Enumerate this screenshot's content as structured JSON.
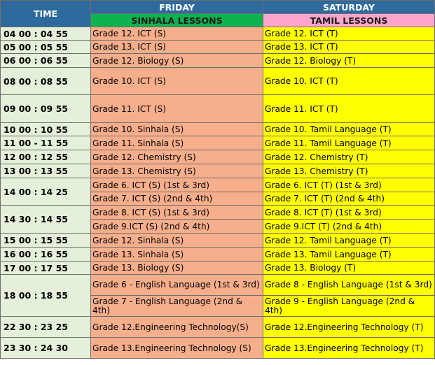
{
  "header": {
    "time": "TIME",
    "friday": "FRIDAY",
    "saturday": "SATURDAY",
    "sinhala": "SINHALA LESSONS",
    "tamil": "TAMIL LESSONS"
  },
  "rows": [
    {
      "time": "04 00 : 04 55",
      "fri": [
        "Grade 12. ICT (S)"
      ],
      "sat": [
        "Grade 12. ICT (T)"
      ]
    },
    {
      "time": "05 00 : 05 55",
      "fri": [
        "Grade 13. ICT (S)"
      ],
      "sat": [
        "Grade 13. ICT (T)"
      ]
    },
    {
      "time": "06 00 :  06 55",
      "fri": [
        "Grade 12. Biology (S)"
      ],
      "sat": [
        "Grade 12. Biology  (T)"
      ]
    },
    {
      "time": "08 00 : 08 55",
      "fri": [
        "Grade 10. ICT (S)"
      ],
      "sat": [
        "Grade 10. ICT (T)"
      ]
    },
    {
      "time": "09 00 : 09 55",
      "fri": [
        "Grade 11. ICT (S)"
      ],
      "sat": [
        "Grade 11. ICT (T)"
      ]
    },
    {
      "time": "10 00  : 10 55",
      "fri": [
        "Grade 10. Sinhala (S)"
      ],
      "sat": [
        "Grade 10. Tamil Language (T)"
      ]
    },
    {
      "time": "11 00 - 11 55",
      "fri": [
        "Grade 11. Sinhala (S)"
      ],
      "sat": [
        "Grade 11. Tamil Language (T)"
      ]
    },
    {
      "time": "12 00 : 12 55",
      "fri": [
        "Grade 12. Chemistry (S)"
      ],
      "sat": [
        "Grade 12. Chemistry  (T)"
      ]
    },
    {
      "time": "13 00 : 13 55",
      "fri": [
        "Grade 13. Chemistry (S)"
      ],
      "sat": [
        "Grade 13. Chemistry  (T)"
      ]
    },
    {
      "time": "14 00 : 14 25",
      "fri": [
        "Grade 6. ICT (S) (1st & 3rd)",
        "Grade 7. ICT (S) (2nd & 4th)"
      ],
      "sat": [
        "Grade 6. ICT (T) (1st & 3rd)",
        "Grade 7. ICT (T) (2nd & 4th)"
      ]
    },
    {
      "time": "14 30 : 14 55",
      "fri": [
        "Grade 8. ICT (S) (1st & 3rd)",
        "Grade 9.ICT (S) (2nd & 4th)"
      ],
      "sat": [
        "Grade 8. ICT (T) (1st & 3rd)",
        "Grade 9.ICT (T) (2nd & 4th)"
      ]
    },
    {
      "time": "15 00 :  15 55",
      "fri": [
        "Grade 12. Sinhala (S)"
      ],
      "sat": [
        "Grade 12. Tamil Language (T)"
      ]
    },
    {
      "time": "16 00 :  16 55",
      "fri": [
        "Grade 13. Sinhala (S)"
      ],
      "sat": [
        "Grade 13. Tamil Language  (T)"
      ]
    },
    {
      "time": "17 00 : 17 55",
      "fri": [
        "Grade 13. Biology (S)"
      ],
      "sat": [
        "Grade 13. Biology (T)"
      ]
    },
    {
      "time": "18 00 : 18 55",
      "fri": [
        "Grade 6 - English Language (1st & 3rd)",
        "Grade 7 - English Language  (2nd & 4th)"
      ],
      "sat": [
        "Grade 8 - English Language (1st & 3rd)",
        "Grade 9 - English Language (2nd & 4th)"
      ]
    },
    {
      "time": "22 30 : 23 25",
      "fri": [
        "Grade 12.Engineering Technology(S)"
      ],
      "sat": [
        "Grade 12.Engineering Technology  (T)"
      ]
    },
    {
      "time": "23 30 : 24 30",
      "fri": [
        "Grade 13.Engineering Technology (S)"
      ],
      "sat": [
        "Grade 13.Engineering Technology  (T)"
      ]
    }
  ],
  "colors": {
    "header_blue": "#2e6a9e",
    "sinhala_green": "#10b14f",
    "tamil_pink": "#ffa5ce",
    "time_cell": "#e4f0da",
    "friday_cell": "#f7ae8b",
    "saturday_cell": "#ffff00"
  }
}
